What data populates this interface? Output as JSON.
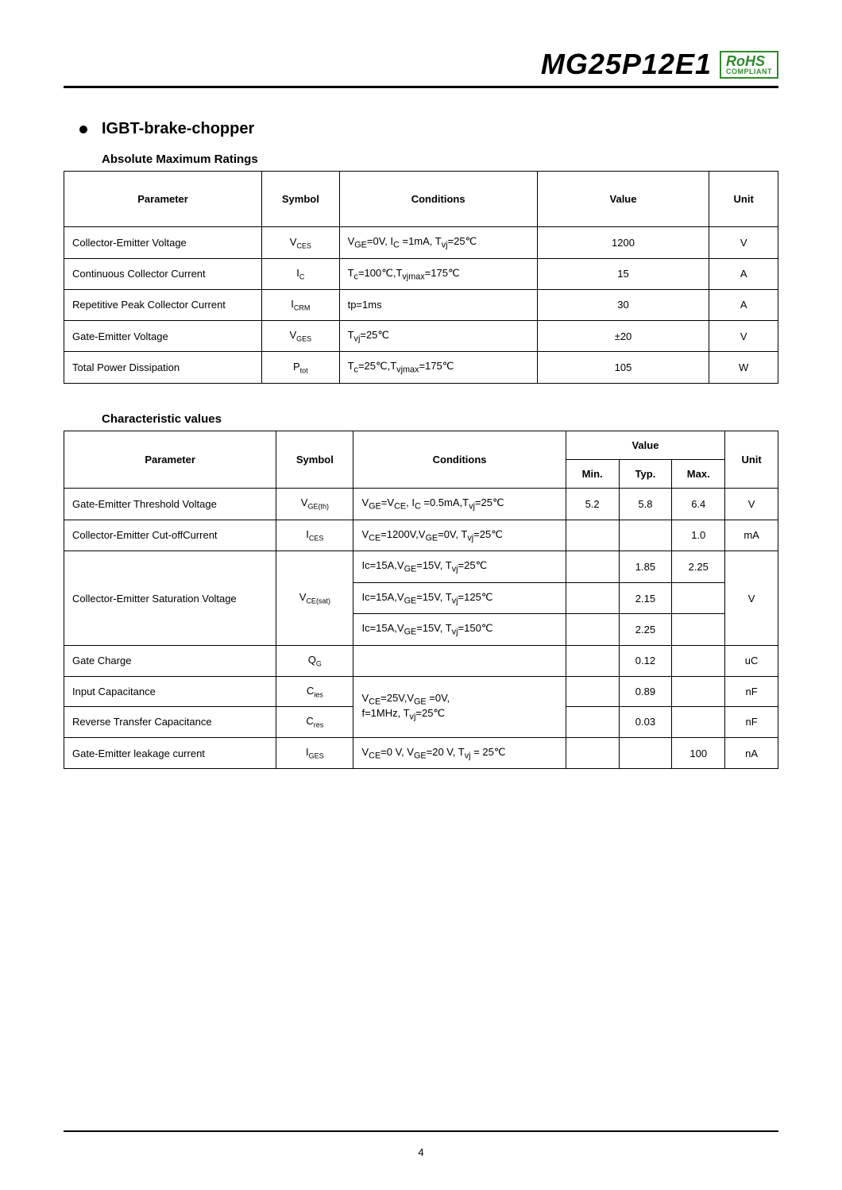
{
  "header": {
    "part_number": "MG25P12E1",
    "rohs_top": "RoHS",
    "rohs_bottom": "COMPLIANT"
  },
  "section": {
    "title": "IGBT-brake-chopper"
  },
  "table1": {
    "title": "Absolute Maximum Ratings",
    "headers": {
      "parameter": "Parameter",
      "symbol": "Symbol",
      "conditions": "Conditions",
      "value": "Value",
      "unit": "Unit"
    },
    "rows": [
      {
        "parameter": "Collector-Emitter Voltage",
        "symbol": "V",
        "symbol_sub": "CES",
        "conditions_html": "V<sub>GE</sub>=0V, I<sub>C</sub> =1mA, T<sub>vj</sub>=25℃",
        "value": "1200",
        "unit": "V"
      },
      {
        "parameter": "Continuous Collector Current",
        "symbol": "I",
        "symbol_sub": "C",
        "conditions_html": "T<sub>c</sub>=100℃,T<sub>vjmax</sub>=175℃",
        "value": "15",
        "unit": "A"
      },
      {
        "parameter": "Repetitive Peak Collector Current",
        "symbol": "I",
        "symbol_sub": "CRM",
        "conditions_html": "tp=1ms",
        "value": "30",
        "unit": "A"
      },
      {
        "parameter": "Gate-Emitter Voltage",
        "symbol": "V",
        "symbol_sub": "GES",
        "conditions_html": "T<sub>vj</sub>=25℃",
        "value": "±20",
        "unit": "V"
      },
      {
        "parameter": "Total Power Dissipation",
        "symbol": "P",
        "symbol_sub": "tot",
        "conditions_html": "T<sub>c</sub>=25℃,T<sub>vjmax</sub>=175℃",
        "value": "105",
        "unit": "W"
      }
    ]
  },
  "table2": {
    "title": "Characteristic values",
    "headers": {
      "parameter": "Parameter",
      "symbol": "Symbol",
      "conditions": "Conditions",
      "value": "Value",
      "min": "Min.",
      "typ": "Typ.",
      "max": "Max.",
      "unit": "Unit"
    },
    "rows": {
      "r1": {
        "parameter": "Gate-Emitter Threshold Voltage",
        "symbol": "V",
        "symbol_sub": "GE(th)",
        "conditions_html": "V<sub>GE</sub>=V<sub>CE</sub>, I<sub>C</sub> =0.5mA,T<sub>vj</sub>=25℃",
        "min": "5.2",
        "typ": "5.8",
        "max": "6.4",
        "unit": "V"
      },
      "r2": {
        "parameter": "Collector-Emitter Cut-offCurrent",
        "symbol": "I",
        "symbol_sub": "CES",
        "conditions_html": "V<sub>CE</sub>=1200V,V<sub>GE</sub>=0V, T<sub>vj</sub>=25℃",
        "min": "",
        "typ": "",
        "max": "1.0",
        "unit": "mA"
      },
      "r3": {
        "parameter": "Collector-Emitter Saturation Voltage",
        "symbol": "V",
        "symbol_sub": "CE(sat)",
        "c1_html": "Ic=15A,V<sub>GE</sub>=15V, T<sub>vj</sub>=25℃",
        "c2_html": "Ic=15A,V<sub>GE</sub>=15V, T<sub>vj</sub>=125℃",
        "c3_html": "Ic=15A,V<sub>GE</sub>=15V, T<sub>vj</sub>=150℃",
        "v1_typ": "1.85",
        "v1_max": "2.25",
        "v2_typ": "2.15",
        "v3_typ": "2.25",
        "unit": "V"
      },
      "r4": {
        "parameter": "Gate Charge",
        "symbol": "Q",
        "symbol_sub": "G",
        "conditions_html": "",
        "min": "",
        "typ": "0.12",
        "max": "",
        "unit": "uC"
      },
      "r5": {
        "parameter": "Input Capacitance",
        "symbol": "C",
        "symbol_sub": "ies",
        "conditions_html": "V<sub>CE</sub>=25V,V<sub>GE</sub> =0V,",
        "min": "",
        "typ": "0.89",
        "max": "",
        "unit": "nF"
      },
      "r6": {
        "parameter": "Reverse Transfer Capacitance",
        "symbol": "C",
        "symbol_sub": "res",
        "conditions_html": "f=1MHz, T<sub>vj</sub>=25℃",
        "min": "",
        "typ": "0.03",
        "max": "",
        "unit": "nF"
      },
      "r7": {
        "parameter": "Gate-Emitter leakage current",
        "symbol": "I",
        "symbol_sub": "GES",
        "conditions_html": "V<sub>CE</sub>=0 V, V<sub>GE</sub>=20 V, T<sub>vj</sub> = 25℃",
        "min": "",
        "typ": "",
        "max": "100",
        "unit": "nA"
      }
    }
  },
  "footer": {
    "page": "4"
  },
  "colors": {
    "rohs_green": "#2e8b2e",
    "border": "#000000",
    "background": "#ffffff",
    "text": "#000000"
  }
}
